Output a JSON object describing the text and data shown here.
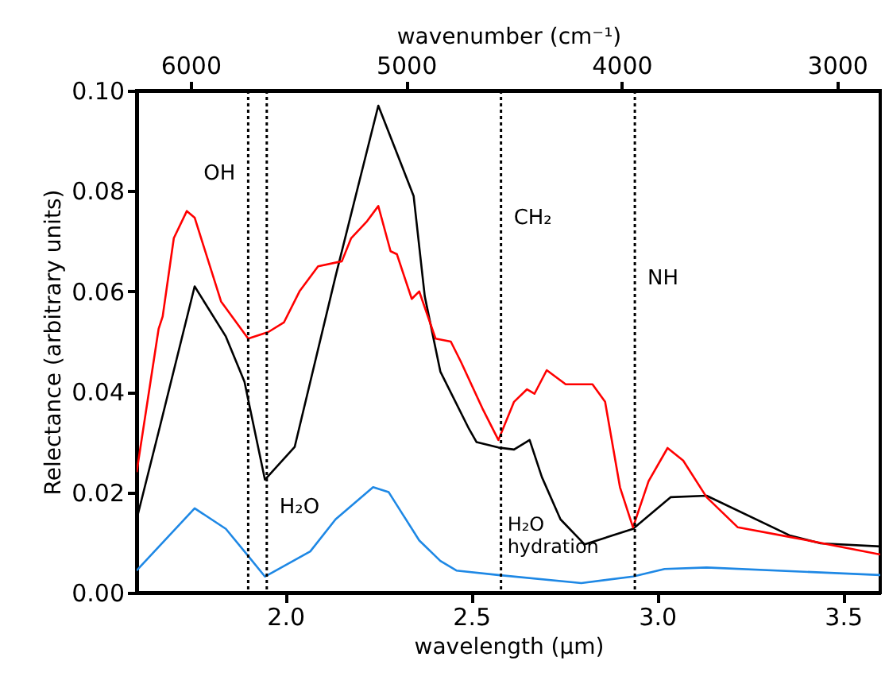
{
  "chart_data": {
    "type": "line",
    "xlabel": "wavelength (μm)",
    "ylabel": "Relectance (arbitrary units)",
    "x2label": "wavenumber (cm⁻¹)",
    "xlim": [
      1.6,
      3.6
    ],
    "xticks": [
      {
        "value": 2,
        "label": "2.0"
      },
      2.5,
      {
        "value": 3,
        "label": "3.0"
      },
      3.5
    ],
    "x2lim": [
      6250,
      2800
    ],
    "x2ticks": [
      6000,
      5000,
      4000,
      3000
    ],
    "ylim": [
      0,
      0.1
    ],
    "yticks": [
      {
        "value": 0,
        "label": "0.00"
      },
      0.02,
      0.04,
      0.06,
      0.08,
      {
        "value": 0.1,
        "label": "0.10"
      }
    ],
    "grid": false,
    "marker": "none",
    "line_style": "solid",
    "series": [
      {
        "color": "#000000",
        "x": [
          1.6,
          1.659,
          1.756,
          1.84,
          1.89,
          1.945,
          2.025,
          2.135,
          2.25,
          2.345,
          2.375,
          2.417,
          2.494,
          2.514,
          2.573,
          2.615,
          2.657,
          2.69,
          2.74,
          2.805,
          2.935,
          3.036,
          3.133,
          3.356,
          3.44,
          3.6
        ],
        "values": [
          0.0146,
          0.032,
          0.061,
          0.051,
          0.042,
          0.0225,
          0.029,
          0.063,
          0.097,
          0.079,
          0.059,
          0.044,
          0.0326,
          0.03,
          0.0289,
          0.0285,
          0.0304,
          0.023,
          0.0146,
          0.0096,
          0.0127,
          0.019,
          0.0193,
          0.0114,
          0.0098,
          0.0092
        ]
      },
      {
        "color": "#ff0000",
        "x": [
          1.6,
          1.659,
          1.67,
          1.7,
          1.735,
          1.756,
          1.827,
          1.9,
          1.954,
          1.996,
          2.038,
          2.088,
          2.152,
          2.177,
          2.22,
          2.25,
          2.283,
          2.3,
          2.34,
          2.36,
          2.404,
          2.445,
          2.472,
          2.53,
          2.573,
          2.615,
          2.65,
          2.67,
          2.703,
          2.754,
          2.826,
          2.86,
          2.9,
          2.935,
          2.977,
          3.028,
          3.07,
          3.133,
          3.217,
          3.356,
          3.6
        ],
        "values": [
          0.024,
          0.0525,
          0.055,
          0.0706,
          0.076,
          0.0747,
          0.058,
          0.0506,
          0.0519,
          0.0538,
          0.06,
          0.065,
          0.066,
          0.0706,
          0.074,
          0.077,
          0.068,
          0.0674,
          0.0585,
          0.06,
          0.0506,
          0.05,
          0.046,
          0.0367,
          0.0304,
          0.038,
          0.0405,
          0.0396,
          0.0443,
          0.0415,
          0.0415,
          0.038,
          0.021,
          0.013,
          0.0222,
          0.0288,
          0.0263,
          0.019,
          0.013,
          0.0111,
          0.0076
        ]
      },
      {
        "color": "#1e88e5",
        "x": [
          1.6,
          1.756,
          1.84,
          1.9,
          1.945,
          2.067,
          2.135,
          2.236,
          2.278,
          2.36,
          2.417,
          2.46,
          2.573,
          2.796,
          2.935,
          3.02,
          3.133,
          3.6
        ],
        "values": [
          0.0044,
          0.0168,
          0.0127,
          0.0073,
          0.0032,
          0.0082,
          0.0146,
          0.021,
          0.02,
          0.0104,
          0.0063,
          0.0044,
          0.0035,
          0.0019,
          0.0032,
          0.0047,
          0.005,
          0.0035
        ]
      }
    ],
    "ref_lines": [
      {
        "axis": "x",
        "value": 1.9,
        "line_style": "dotted",
        "color": "#000000",
        "label": "OH"
      },
      {
        "axis": "x",
        "value": 1.95,
        "line_style": "dotted",
        "color": "#000000",
        "label": "H₂O"
      },
      {
        "axis": "x",
        "value": 2.58,
        "line_style": "dotted",
        "color": "#000000",
        "label": "CH₂"
      },
      {
        "axis": "x",
        "value": 2.94,
        "line_style": "dotted",
        "color": "#000000",
        "label": "NH"
      }
    ],
    "annotations": [
      "H₂O\nhydration"
    ]
  }
}
